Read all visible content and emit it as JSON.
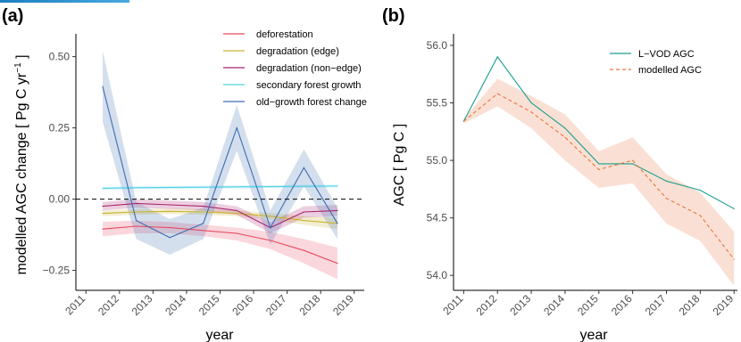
{
  "chart_data": [
    {
      "panel_label": "(a)",
      "type": "line",
      "xlabel": "year",
      "ylabel": "modelled AGC change  [ Pg C yr",
      "ylabel_sup": "−1",
      "ylabel_end": " ]",
      "xlim": [
        2010.7,
        2019.3
      ],
      "ylim": [
        -0.32,
        0.58
      ],
      "x_ticks": [
        2011,
        2012,
        2013,
        2014,
        2015,
        2016,
        2017,
        2018,
        2019
      ],
      "y_ticks": [
        -0.25,
        0.0,
        0.25,
        0.5
      ],
      "y_tick_labels": [
        "−0.25",
        "0.00",
        "0.25",
        "0.50"
      ],
      "reference_line": {
        "y": 0.0,
        "style": "dashed"
      },
      "legend_position": "top-right",
      "series": [
        {
          "name": "deforestation",
          "color": "#e8485e",
          "x": [
            2011.5,
            2012.5,
            2013.5,
            2014.5,
            2015.5,
            2016.5,
            2017.5,
            2018.5
          ],
          "values": [
            -0.105,
            -0.095,
            -0.1,
            -0.11,
            -0.12,
            -0.145,
            -0.18,
            -0.225
          ],
          "lower": [
            -0.13,
            -0.12,
            -0.12,
            -0.13,
            -0.145,
            -0.175,
            -0.225,
            -0.28
          ],
          "upper": [
            -0.08,
            -0.075,
            -0.08,
            -0.09,
            -0.1,
            -0.115,
            -0.14,
            -0.17
          ]
        },
        {
          "name": "degradation (edge)",
          "color": "#c9b22e",
          "x": [
            2011.5,
            2012.5,
            2013.5,
            2014.5,
            2015.5,
            2016.5,
            2017.5,
            2018.5
          ],
          "values": [
            -0.05,
            -0.045,
            -0.043,
            -0.045,
            -0.05,
            -0.06,
            -0.075,
            -0.085
          ],
          "lower": [
            -0.06,
            -0.055,
            -0.052,
            -0.055,
            -0.06,
            -0.072,
            -0.09,
            -0.105
          ],
          "upper": [
            -0.04,
            -0.035,
            -0.034,
            -0.035,
            -0.04,
            -0.048,
            -0.06,
            -0.065
          ]
        },
        {
          "name": "degradation (non−edge)",
          "color": "#a8246e",
          "x": [
            2011.5,
            2012.5,
            2013.5,
            2014.5,
            2015.5,
            2016.5,
            2017.5,
            2018.5
          ],
          "values": [
            -0.025,
            -0.015,
            -0.02,
            -0.025,
            -0.04,
            -0.1,
            -0.045,
            -0.04
          ],
          "lower": [
            -0.04,
            -0.03,
            -0.035,
            -0.04,
            -0.055,
            -0.12,
            -0.065,
            -0.06
          ],
          "upper": [
            -0.01,
            -0.0,
            -0.005,
            -0.01,
            -0.025,
            -0.08,
            -0.025,
            -0.02
          ]
        },
        {
          "name": "secondary forest growth",
          "color": "#4dd3e6",
          "x": [
            2011.5,
            2012.5,
            2013.5,
            2014.5,
            2015.5,
            2016.5,
            2017.5,
            2018.5
          ],
          "values": [
            0.038,
            0.04,
            0.041,
            0.042,
            0.043,
            0.044,
            0.045,
            0.046
          ],
          "lower": [
            0.033,
            0.035,
            0.036,
            0.037,
            0.038,
            0.039,
            0.04,
            0.041
          ],
          "upper": [
            0.043,
            0.045,
            0.046,
            0.047,
            0.048,
            0.049,
            0.05,
            0.051
          ]
        },
        {
          "name": "old−growth forest change",
          "color": "#3d6db0",
          "x": [
            2011.5,
            2012.5,
            2013.5,
            2014.5,
            2015.5,
            2016.5,
            2017.5,
            2018.5
          ],
          "values": [
            0.395,
            -0.075,
            -0.135,
            -0.085,
            0.25,
            -0.1,
            0.11,
            -0.085
          ],
          "lower": [
            0.27,
            -0.14,
            -0.195,
            -0.14,
            0.17,
            -0.16,
            0.045,
            -0.14
          ],
          "upper": [
            0.52,
            -0.01,
            -0.07,
            -0.03,
            0.33,
            -0.04,
            0.175,
            -0.03
          ]
        }
      ]
    },
    {
      "panel_label": "(b)",
      "type": "line",
      "xlabel": "year",
      "ylabel": "AGC  [ Pg C ]",
      "xlim": [
        2010.7,
        2019.1
      ],
      "ylim": [
        53.87,
        56.1
      ],
      "x_ticks": [
        2011,
        2012,
        2013,
        2014,
        2015,
        2016,
        2017,
        2018,
        2019
      ],
      "y_ticks": [
        54.0,
        54.5,
        55.0,
        55.5,
        56.0
      ],
      "y_tick_labels": [
        "54.0",
        "54.5",
        "55.0",
        "55.5",
        "56.0"
      ],
      "legend_position": "top-right",
      "series": [
        {
          "name": "L−VOD AGC",
          "color": "#1a9e8f",
          "style": "solid",
          "x": [
            2011,
            2012,
            2013,
            2014,
            2015,
            2016,
            2017,
            2018,
            2019
          ],
          "values": [
            55.34,
            55.9,
            55.5,
            55.28,
            54.97,
            54.97,
            54.82,
            54.74,
            54.58
          ]
        },
        {
          "name": "modelled AGC",
          "color": "#e8743b",
          "style": "dashed",
          "x": [
            2011,
            2012,
            2013,
            2014,
            2015,
            2016,
            2017,
            2018,
            2019
          ],
          "values": [
            55.34,
            55.58,
            55.42,
            55.2,
            54.92,
            55.0,
            54.67,
            54.52,
            54.14
          ],
          "lower": [
            55.32,
            55.47,
            55.28,
            55.0,
            54.76,
            54.8,
            54.45,
            54.3,
            53.91
          ],
          "upper": [
            55.36,
            55.71,
            55.56,
            55.4,
            55.08,
            55.2,
            54.88,
            54.72,
            54.38
          ]
        }
      ]
    }
  ]
}
